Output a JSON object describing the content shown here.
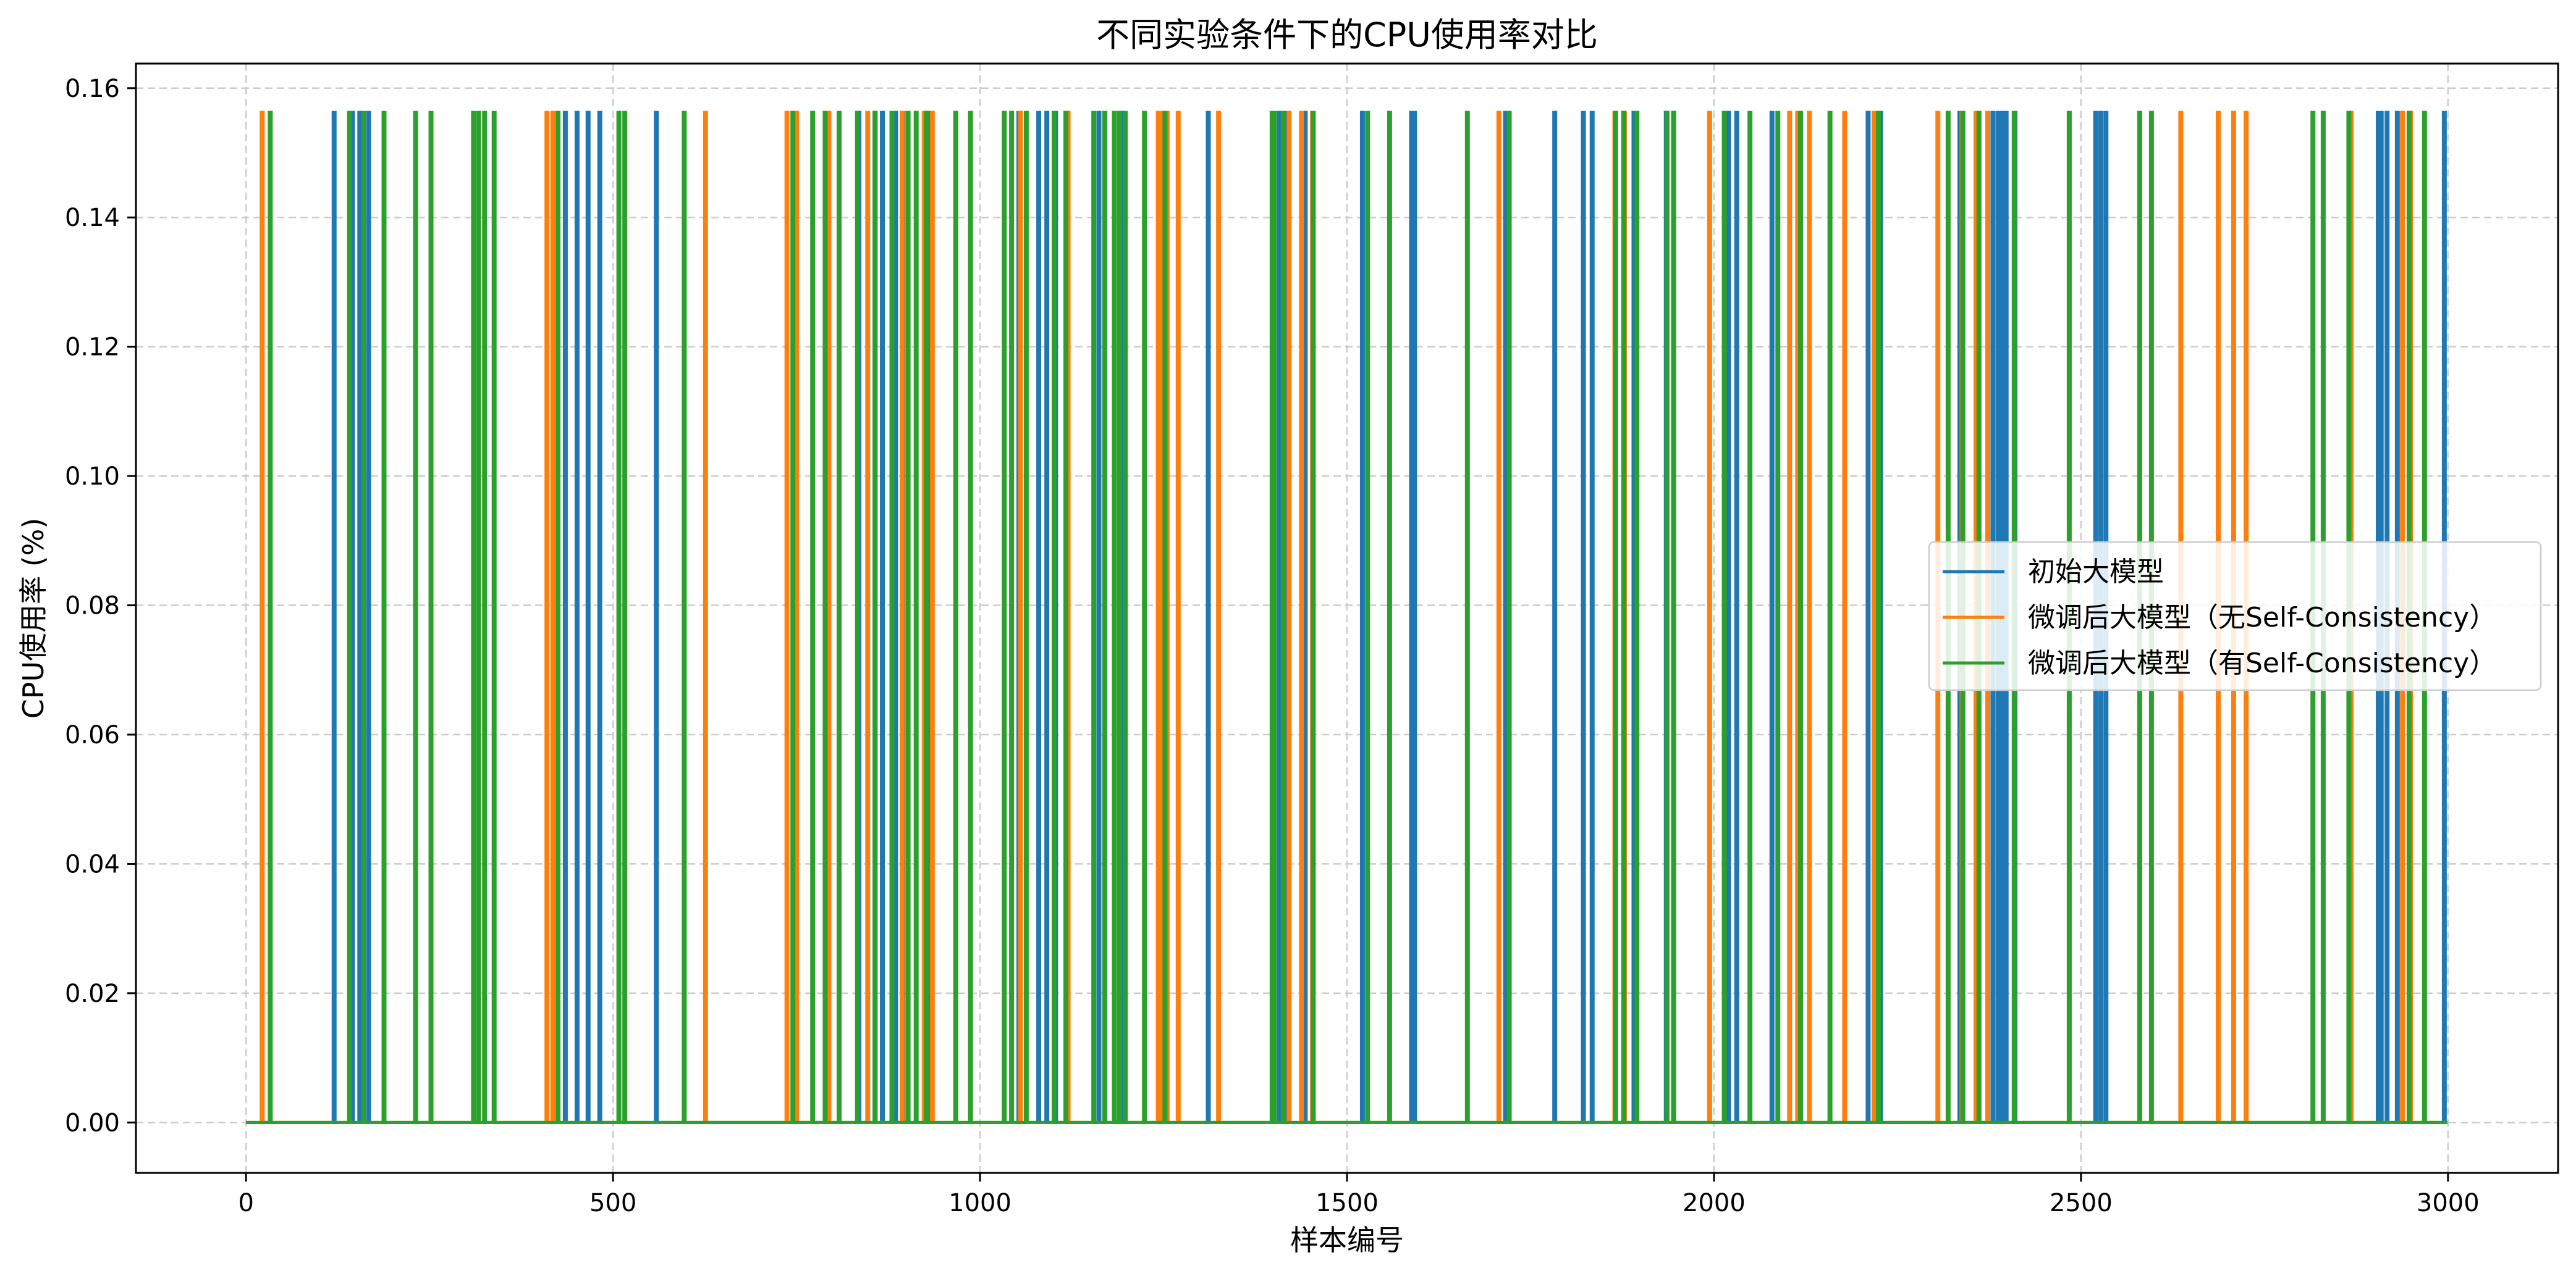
{
  "chart_data": {
    "type": "line",
    "title": "不同实验条件下的CPU使用率对比",
    "xlabel": "样本编号",
    "ylabel": "CPU使用率 (%)",
    "xlim": [
      -150,
      3150
    ],
    "ylim": [
      -0.0078,
      0.1638
    ],
    "xticks": [
      0,
      500,
      1000,
      1500,
      2000,
      2500,
      3000
    ],
    "yticks": [
      0.0,
      0.02,
      0.04,
      0.06,
      0.08,
      0.1,
      0.12,
      0.14,
      0.16
    ],
    "xtick_labels": [
      "0",
      "500",
      "1000",
      "1500",
      "2000",
      "2500",
      "3000"
    ],
    "ytick_labels": [
      "0.00",
      "0.02",
      "0.04",
      "0.06",
      "0.08",
      "0.10",
      "0.12",
      "0.14",
      "0.16"
    ],
    "grid": true,
    "grid_style": "dashed",
    "legend_position": "center-right",
    "x_range": [
      0,
      2999
    ],
    "baseline_value": 0.0,
    "spike_value": 0.15625,
    "series": [
      {
        "name": "初始大模型",
        "color": "#1f77b4",
        "spikes_at": [
          120,
          145,
          155,
          167,
          435,
          451,
          466,
          482,
          559,
          835,
          857,
          867,
          885,
          895,
          930,
          1053,
          1080,
          1091,
          1103,
          1162,
          1192,
          1311,
          1408,
          1418,
          1443,
          1521,
          1588,
          1592,
          1716,
          1783,
          1822,
          1834,
          1891,
          1935,
          1945,
          2020,
          2031,
          2079,
          2210,
          2227,
          2335,
          2339,
          2380,
          2387,
          2392,
          2398,
          2410,
          2520,
          2527,
          2534,
          2905,
          2909,
          2917,
          2931,
          2949,
          2995
        ]
      },
      {
        "name": "微调后大模型（无Self-Consistency）",
        "color": "#ff7f0e",
        "spikes_at": [
          22,
          410,
          418,
          626,
          737,
          750,
          794,
          847,
          894,
          924,
          935,
          1055,
          1120,
          1243,
          1247,
          1255,
          1270,
          1325,
          1421,
          1438,
          1453,
          1707,
          1865,
          1878,
          1994,
          2103,
          2114,
          2130,
          2178,
          2218,
          2305,
          2338,
          2357,
          2373,
          2636,
          2687,
          2708,
          2725,
          2868,
          2938,
          2949
        ]
      },
      {
        "name": "微调后大模型（有Self-Consistency）",
        "color": "#2ca02c",
        "spikes_at": [
          33,
          141,
          160,
          188,
          231,
          252,
          310,
          317,
          325,
          338,
          425,
          508,
          516,
          597,
          745,
          772,
          789,
          808,
          833,
          857,
          880,
          902,
          913,
          927,
          967,
          987,
          1033,
          1043,
          1063,
          1101,
          1117,
          1155,
          1170,
          1183,
          1190,
          1198,
          1224,
          1252,
          1398,
          1401,
          1413,
          1454,
          1528,
          1558,
          1664,
          1721,
          1866,
          1877,
          1895,
          1936,
          1945,
          2014,
          2049,
          2087,
          2118,
          2158,
          2224,
          2319,
          2339,
          2361,
          2409,
          2484,
          2580,
          2596,
          2816,
          2830,
          2865,
          2947,
          2968
        ]
      }
    ]
  }
}
